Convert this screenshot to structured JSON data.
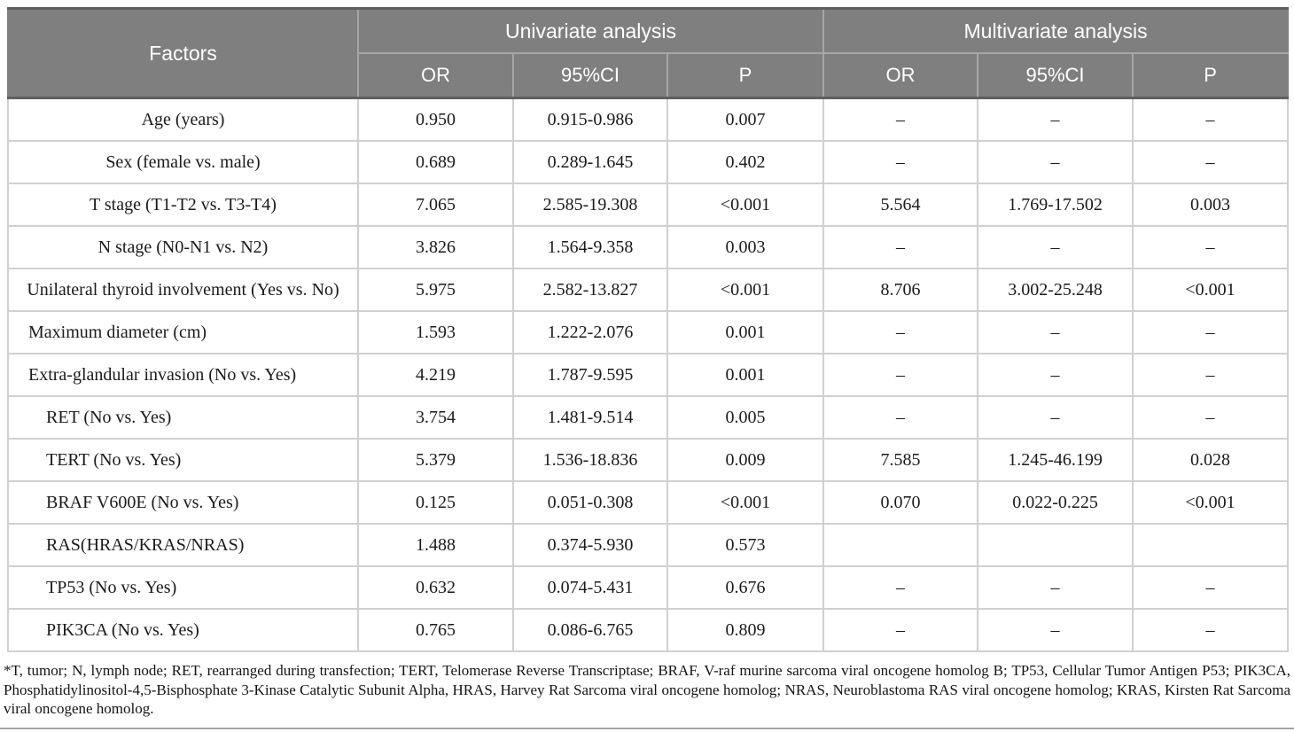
{
  "colors": {
    "header_bg": "#7f7f7f",
    "header_text": "#ffffff",
    "header_dark_border": "#5f5f5f",
    "header_light_border": "#a6a6a6",
    "grid_line": "#d0d0d0",
    "body_text": "#1a1a1a"
  },
  "table": {
    "header": {
      "factors_label": "Factors",
      "univariate_label": "Univariate analysis",
      "multivariate_label": "Multivariate analysis",
      "sub_columns": [
        "OR",
        "95%CI",
        "P"
      ]
    },
    "rows": [
      {
        "factor": "Age (years)",
        "align": "center",
        "uni": [
          "0.950",
          "0.915-0.986",
          "0.007"
        ],
        "multi": [
          "–",
          "–",
          "–"
        ]
      },
      {
        "factor": "Sex (female vs. male)",
        "align": "center",
        "uni": [
          "0.689",
          "0.289-1.645",
          "0.402"
        ],
        "multi": [
          "–",
          "–",
          "–"
        ]
      },
      {
        "factor": "T stage (T1-T2 vs. T3-T4)",
        "align": "center",
        "uni": [
          "7.065",
          "2.585-19.308",
          "<0.001"
        ],
        "multi": [
          "5.564",
          "1.769-17.502",
          "0.003"
        ]
      },
      {
        "factor": "N stage (N0-N1 vs. N2)",
        "align": "center",
        "uni": [
          "3.826",
          "1.564-9.358",
          "0.003"
        ],
        "multi": [
          "–",
          "–",
          "–"
        ]
      },
      {
        "factor": "Unilateral thyroid involvement (Yes vs. No)",
        "align": "center",
        "uni": [
          "5.975",
          "2.582-13.827",
          "<0.001"
        ],
        "multi": [
          "8.706",
          "3.002-25.248",
          "<0.001"
        ]
      },
      {
        "factor": "Maximum diameter (cm)",
        "align": "left",
        "uni": [
          "1.593",
          "1.222-2.076",
          "0.001"
        ],
        "multi": [
          "–",
          "–",
          "–"
        ]
      },
      {
        "factor": "Extra-glandular invasion (No vs. Yes)",
        "align": "left",
        "uni": [
          "4.219",
          "1.787-9.595",
          "0.001"
        ],
        "multi": [
          "–",
          "–",
          "–"
        ]
      },
      {
        "factor": "RET (No vs. Yes)",
        "align": "indent",
        "uni": [
          "3.754",
          "1.481-9.514",
          "0.005"
        ],
        "multi": [
          "–",
          "–",
          "–"
        ]
      },
      {
        "factor": "TERT (No vs. Yes)",
        "align": "indent",
        "uni": [
          "5.379",
          "1.536-18.836",
          "0.009"
        ],
        "multi": [
          "7.585",
          "1.245-46.199",
          "0.028"
        ]
      },
      {
        "factor": "BRAF V600E (No vs. Yes)",
        "align": "indent",
        "uni": [
          "0.125",
          "0.051-0.308",
          "<0.001"
        ],
        "multi": [
          "0.070",
          "0.022-0.225",
          "<0.001"
        ]
      },
      {
        "factor": "RAS(HRAS/KRAS/NRAS)",
        "align": "indent",
        "uni": [
          "1.488",
          "0.374-5.930",
          "0.573"
        ],
        "multi": [
          "",
          "",
          ""
        ]
      },
      {
        "factor": "TP53 (No vs. Yes)",
        "align": "indent",
        "uni": [
          "0.632",
          "0.074-5.431",
          "0.676"
        ],
        "multi": [
          "–",
          "–",
          "–"
        ]
      },
      {
        "factor": "PIK3CA (No vs. Yes)",
        "align": "indent",
        "uni": [
          "0.765",
          "0.086-6.765",
          "0.809"
        ],
        "multi": [
          "–",
          "–",
          "–"
        ]
      }
    ]
  },
  "footnote": "*T, tumor; N, lymph node; RET, rearranged during transfection; TERT, Telomerase Reverse Transcriptase; BRAF, V-raf murine sarcoma viral oncogene homolog B; TP53, Cellular Tumor Antigen P53; PIK3CA, Phosphatidylinositol-4,5-Bisphosphate 3-Kinase Catalytic Subunit Alpha, HRAS, Harvey Rat Sarcoma viral oncogene homolog; NRAS, Neuroblastoma RAS viral oncogene homolog; KRAS, Kirsten Rat Sarcoma viral oncogene homolog."
}
